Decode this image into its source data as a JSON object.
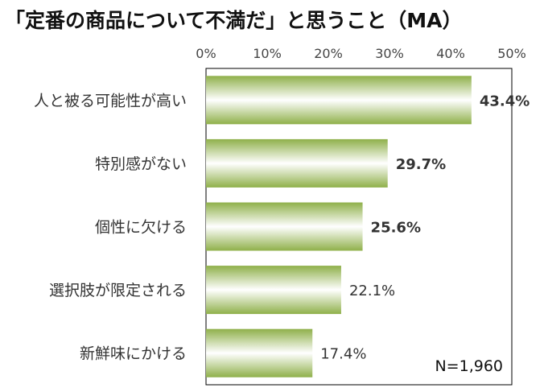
{
  "title": "「定番の商品について不満だ」と思うこと（MA）",
  "chart_data": {
    "type": "bar",
    "orientation": "horizontal",
    "categories": [
      "人と被る可能性が高い",
      "特別感がない",
      "個性に欠ける",
      "選択肢が限定される",
      "新鮮味にかける"
    ],
    "values": [
      43.4,
      29.7,
      25.6,
      22.1,
      17.4
    ],
    "value_labels": [
      "43.4%",
      "29.7%",
      "25.6%",
      "22.1%",
      "17.4%"
    ],
    "bold_labels": [
      true,
      true,
      true,
      false,
      false
    ],
    "xlim": [
      0,
      50
    ],
    "ticks": [
      0,
      10,
      20,
      30,
      40,
      50
    ],
    "tick_labels": [
      "0%",
      "10%",
      "20%",
      "30%",
      "40%",
      "50%"
    ],
    "note": "N=1,960",
    "bar_color_edge": "#8fb04a",
    "bar_color_center": "#ffffff",
    "grid": false
  }
}
